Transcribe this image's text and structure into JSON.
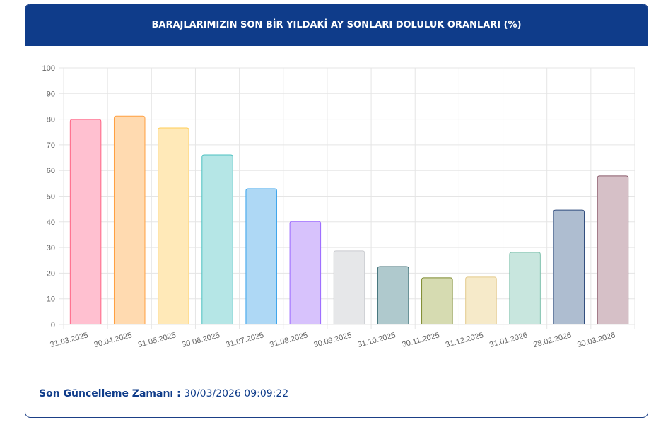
{
  "chart_data": {
    "type": "bar",
    "title": "BARAJLARIMIZIN SON BİR YILDAKİ AY SONLARI DOLULUK ORANLARI (%)",
    "categories": [
      "31.03.2025",
      "30.04.2025",
      "31.05.2025",
      "30.06.2025",
      "31.07.2025",
      "31.08.2025",
      "30.09.2025",
      "31.10.2025",
      "30.11.2025",
      "31.12.2025",
      "31.01.2026",
      "28.02.2026",
      "30.03.2026"
    ],
    "values": [
      79.9,
      81.2,
      76.6,
      66.1,
      52.9,
      40.2,
      28.7,
      22.6,
      18.2,
      18.5,
      28.1,
      44.6,
      57.9
    ],
    "colors": [
      "#ffc0d0",
      "#ffdab0",
      "#ffe9b8",
      "#b5e6e6",
      "#aed8f5",
      "#d7c2fc",
      "#e6e7e9",
      "#afc9cd",
      "#d6dbb1",
      "#f6eac9",
      "#c8e6de",
      "#aebdd0",
      "#d6c0c7"
    ],
    "border_colors": [
      "#ff6384",
      "#ff9f40",
      "#ffcd56",
      "#4bc0c0",
      "#36a2eb",
      "#9966ff",
      "#c9cbcf",
      "#3c6e75",
      "#7d8a2e",
      "#e3c98a",
      "#7fc1ad",
      "#2f4b7c",
      "#8a5a6a"
    ],
    "ylim": [
      0,
      100
    ],
    "yticks": [
      0,
      10,
      20,
      30,
      40,
      50,
      60,
      70,
      80,
      90,
      100
    ],
    "grid": true
  },
  "footer": {
    "label": "Son Güncelleme Zamanı :",
    "value": "30/03/2026 09:09:22"
  }
}
